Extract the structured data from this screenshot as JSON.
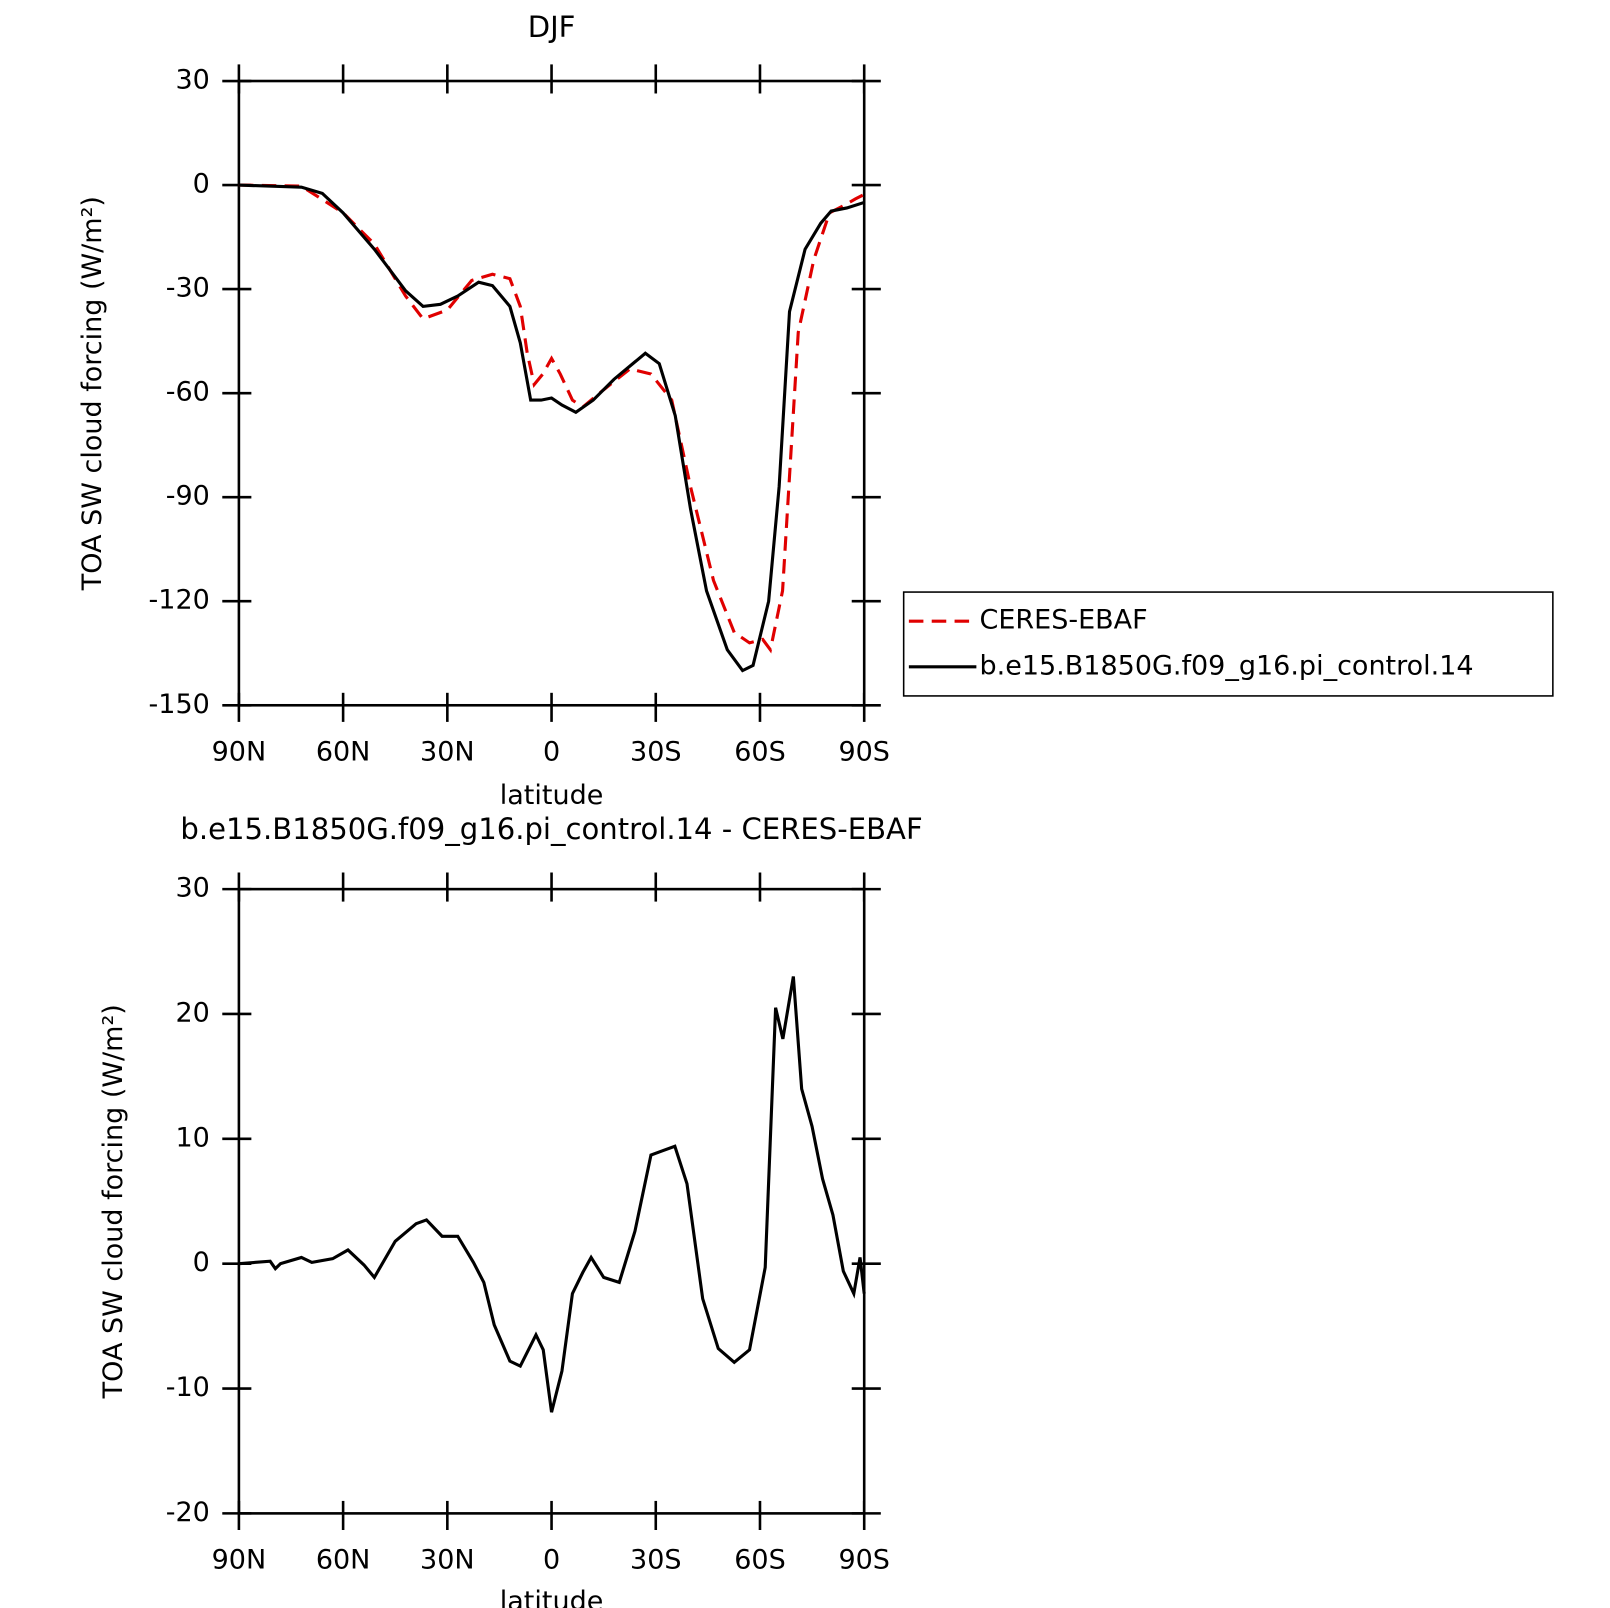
{
  "chart_data": [
    {
      "type": "line",
      "title": "DJF",
      "xlabel": "latitude",
      "ylabel": "TOA SW cloud forcing (W/m²)",
      "xlim": [
        90,
        -90
      ],
      "ylim": [
        -150,
        30
      ],
      "xticks": [
        {
          "value": 90,
          "label": "90N"
        },
        {
          "value": 60,
          "label": "60N"
        },
        {
          "value": 30,
          "label": "30N"
        },
        0,
        {
          "value": -30,
          "label": "30S"
        },
        {
          "value": -60,
          "label": "60S"
        },
        {
          "value": -90,
          "label": "90S"
        }
      ],
      "yticks": [
        30,
        0,
        -30,
        -60,
        -90,
        -120,
        -150
      ],
      "legend": "right",
      "series": [
        {
          "name": "CERES-EBAF",
          "color": "#e00000",
          "style": "dashed",
          "x": [
            90,
            72,
            60,
            51,
            42,
            37,
            30,
            23,
            17,
            12,
            9,
            7,
            5,
            2.5,
            0,
            -2.5,
            -6,
            -9,
            -15,
            -22.6,
            -28.6,
            -34.6,
            -40,
            -46.6,
            -52.6,
            -57,
            -60.8,
            -63,
            -66.5,
            -71,
            -75.5,
            -80,
            -84.5,
            -87.5,
            -90
          ],
          "values": [
            0,
            -0.3,
            -8,
            -17,
            -32,
            -38.6,
            -36,
            -27.5,
            -25.7,
            -27,
            -35,
            -48.5,
            -57.5,
            -54.5,
            -50,
            -54.5,
            -62,
            -64,
            -59,
            -53,
            -54.5,
            -62,
            -87,
            -114,
            -129,
            -132,
            -131,
            -134,
            -117,
            -42.5,
            -21.5,
            -8,
            -5.7,
            -4,
            -2.7
          ]
        },
        {
          "name": "b.e15.B1850G.f09_g16.pi_control.14",
          "color": "#000000",
          "style": "solid",
          "x": [
            90,
            72,
            66,
            60,
            51,
            42,
            37,
            32,
            27,
            21,
            17,
            12,
            9,
            6,
            3,
            0,
            -3,
            -7,
            -12,
            -18,
            -24,
            -27,
            -31,
            -35.6,
            -40,
            -44.6,
            -50.6,
            -55,
            -58,
            -62.5,
            -65.5,
            -68.5,
            -73,
            -77.5,
            -80.5,
            -85,
            -90
          ],
          "values": [
            0,
            -0.6,
            -2.4,
            -8,
            -18.5,
            -30.5,
            -35,
            -34.4,
            -32,
            -28,
            -29,
            -35,
            -45.5,
            -62,
            -62,
            -61.4,
            -63.4,
            -65.5,
            -62,
            -56,
            -51,
            -48.5,
            -51.5,
            -66.5,
            -93.4,
            -117,
            -134,
            -140,
            -138.5,
            -120,
            -87,
            -36.5,
            -18.5,
            -11,
            -7.5,
            -6.6,
            -5
          ]
        }
      ]
    },
    {
      "type": "line",
      "title": "b.e15.B1850G.f09_g16.pi_control.14 - CERES-EBAF",
      "xlabel": "latitude",
      "ylabel": "TOA SW cloud forcing (W/m²)",
      "xlim": [
        90,
        -90
      ],
      "ylim": [
        -20,
        30
      ],
      "xticks": [
        {
          "value": 90,
          "label": "90N"
        },
        {
          "value": 60,
          "label": "60N"
        },
        {
          "value": 30,
          "label": "30N"
        },
        0,
        {
          "value": -30,
          "label": "30S"
        },
        {
          "value": -60,
          "label": "60S"
        },
        {
          "value": -90,
          "label": "90S"
        }
      ],
      "yticks": [
        30,
        20,
        10,
        0,
        -10,
        -20
      ],
      "color": "#000000",
      "x": [
        90,
        81,
        79.5,
        78,
        72,
        69,
        63,
        58.6,
        54,
        51,
        45,
        39,
        36,
        31.5,
        27,
        22.5,
        19.5,
        16.5,
        12,
        9,
        4.5,
        2.4,
        0,
        -3,
        -6,
        -9,
        -11.4,
        -15,
        -19.5,
        -24,
        -28.6,
        -31.5,
        -35.5,
        -39,
        -43.5,
        -48,
        -52.6,
        -57,
        -61.5,
        -64.5,
        -66.6,
        -69.6,
        -72,
        -75,
        -78,
        -81,
        -84,
        -87,
        -88.8,
        -90
      ],
      "values": [
        0,
        0.2,
        -0.4,
        0,
        0.5,
        0.1,
        0.4,
        1.1,
        -0.1,
        -1.1,
        1.8,
        3.2,
        3.5,
        2.2,
        2.2,
        0.1,
        -1.5,
        -4.9,
        -7.8,
        -8.2,
        -5.7,
        -6.9,
        -11.9,
        -8.6,
        -2.4,
        -0.7,
        0.5,
        -1.1,
        -1.5,
        2.6,
        8.7,
        9.0,
        9.4,
        6.4,
        -2.8,
        -6.8,
        -7.9,
        -6.9,
        -0.3,
        20.5,
        18,
        23,
        14,
        11,
        6.8,
        3.9,
        -0.6,
        -2.4,
        0.5,
        -2.4
      ]
    }
  ]
}
